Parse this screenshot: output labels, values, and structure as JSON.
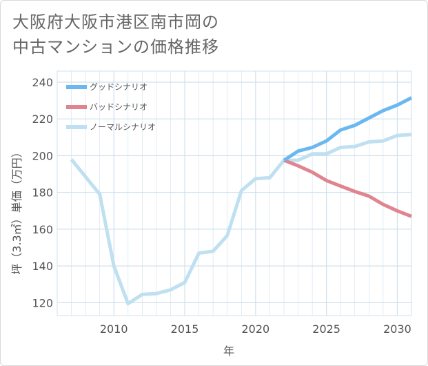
{
  "title": {
    "line1": "大阪府大阪市港区南市岡の",
    "line2": "中古マンションの価格推移"
  },
  "colors": {
    "good": "#6bb8f0",
    "bad": "#e0848f",
    "normal": "#bfe0f0",
    "grid": "#cfe0ec"
  },
  "chart_data": {
    "type": "line",
    "title": "大阪府大阪市港区南市岡の中古マンションの価格推移",
    "xlabel": "年",
    "ylabel": "坪（3.3㎡）単価（万円）",
    "xlim": [
      2006,
      2031
    ],
    "ylim": [
      113,
      246
    ],
    "x_ticks": [
      2010,
      2015,
      2020,
      2025,
      2030
    ],
    "y_ticks": [
      120,
      140,
      160,
      180,
      200,
      220,
      240
    ],
    "grid": true,
    "legend_position": "top-left",
    "series": [
      {
        "name": "グッドシナリオ",
        "color_key": "good",
        "points": [
          [
            2022,
            197.5
          ],
          [
            2023,
            202.5
          ],
          [
            2024,
            204.5
          ],
          [
            2025,
            208
          ],
          [
            2026,
            214
          ],
          [
            2027,
            216.5
          ],
          [
            2028,
            220.5
          ],
          [
            2029,
            224.5
          ],
          [
            2030,
            227.5
          ],
          [
            2031,
            231.5
          ]
        ]
      },
      {
        "name": "バッドシナリオ",
        "color_key": "bad",
        "points": [
          [
            2022,
            197.5
          ],
          [
            2023,
            194.5
          ],
          [
            2024,
            191
          ],
          [
            2025,
            186.5
          ],
          [
            2026,
            183.5
          ],
          [
            2027,
            180.5
          ],
          [
            2028,
            178
          ],
          [
            2029,
            173.5
          ],
          [
            2030,
            170
          ],
          [
            2031,
            167
          ]
        ]
      },
      {
        "name": "ノーマルシナリオ",
        "color_key": "normal",
        "points": [
          [
            2007,
            198
          ],
          [
            2008,
            188.5
          ],
          [
            2009,
            179
          ],
          [
            2010,
            140
          ],
          [
            2011,
            119.5
          ],
          [
            2012,
            124.5
          ],
          [
            2013,
            125
          ],
          [
            2014,
            127
          ],
          [
            2015,
            131
          ],
          [
            2016,
            147
          ],
          [
            2017,
            148
          ],
          [
            2018,
            156.5
          ],
          [
            2019,
            181
          ],
          [
            2020,
            187.5
          ],
          [
            2021,
            188
          ],
          [
            2022,
            197.5
          ],
          [
            2023,
            197.5
          ],
          [
            2024,
            201
          ],
          [
            2025,
            201
          ],
          [
            2026,
            204.5
          ],
          [
            2027,
            205
          ],
          [
            2028,
            207.5
          ],
          [
            2029,
            208
          ],
          [
            2030,
            211
          ],
          [
            2031,
            211.5
          ]
        ]
      }
    ]
  }
}
